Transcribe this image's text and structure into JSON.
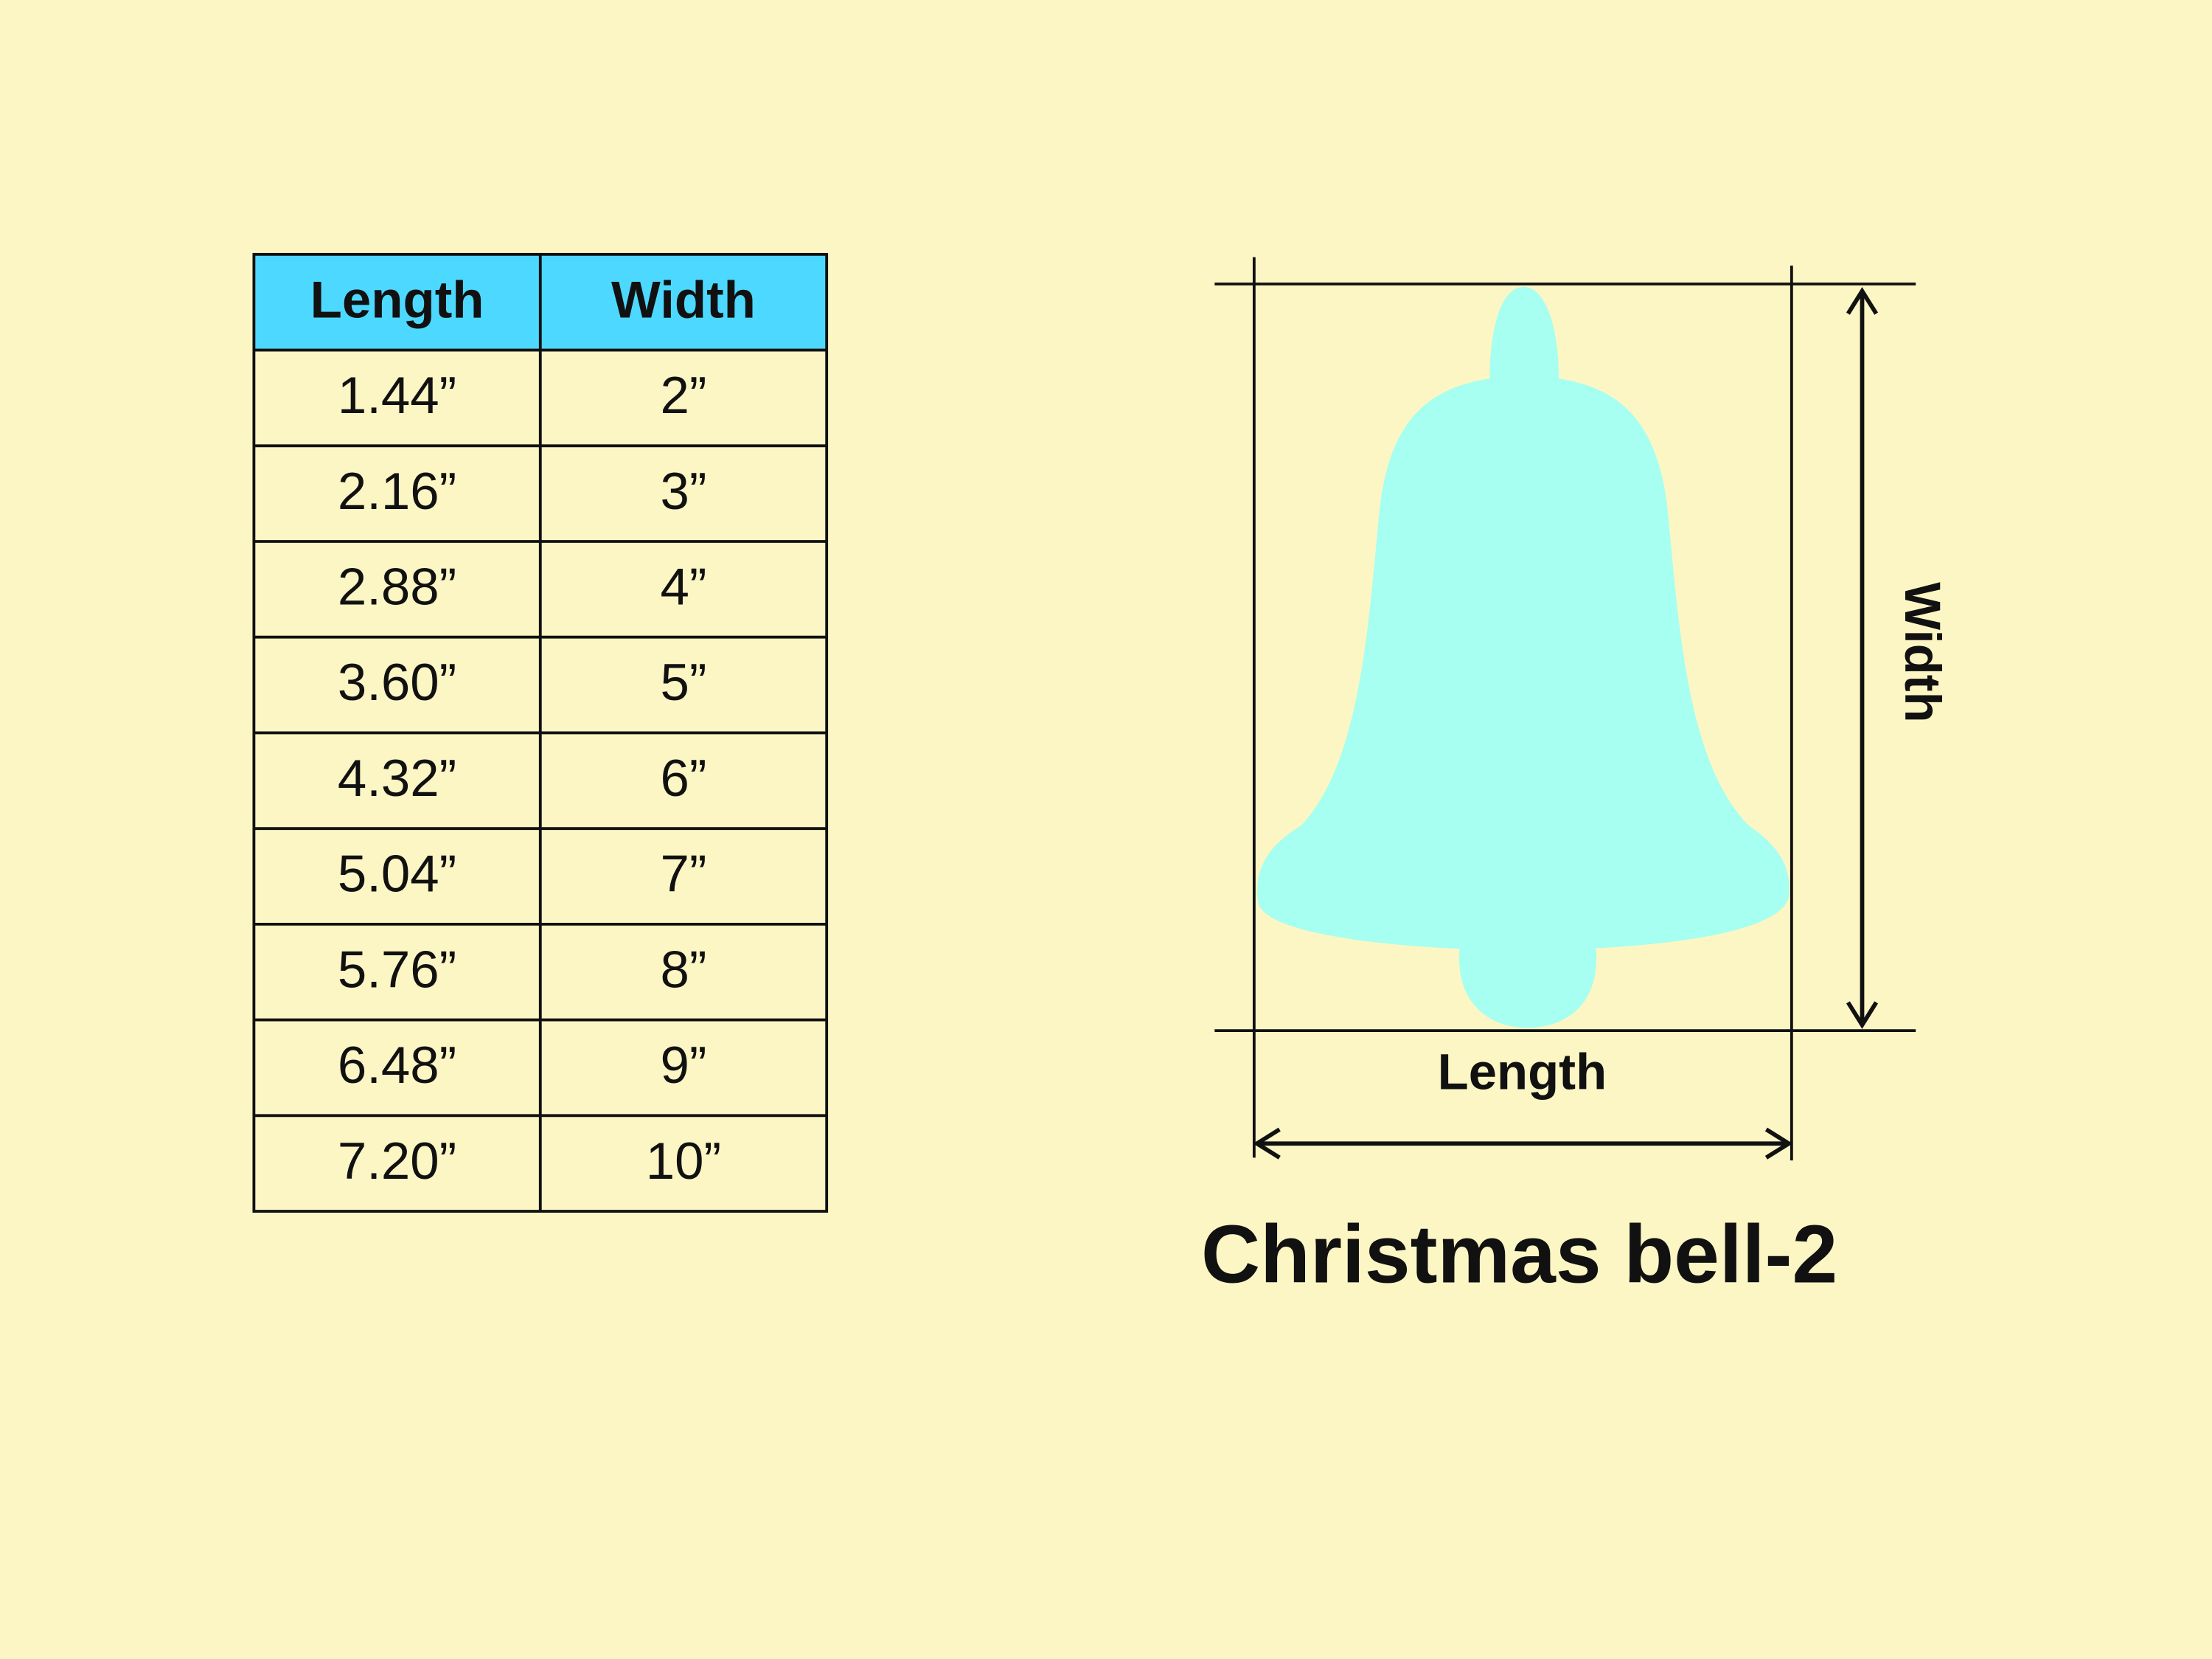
{
  "table": {
    "header": [
      "Length",
      "Width"
    ],
    "rows": [
      [
        "1.44”",
        "2”"
      ],
      [
        "2.16”",
        "3”"
      ],
      [
        "2.88”",
        "4”"
      ],
      [
        "3.60”",
        "5”"
      ],
      [
        "4.32”",
        "6”"
      ],
      [
        "5.04”",
        "7”"
      ],
      [
        "5.76”",
        "8”"
      ],
      [
        "6.48”",
        "9”"
      ],
      [
        "7.20”",
        "10”"
      ]
    ]
  },
  "diagram": {
    "width_label": "Width",
    "length_label": "Length",
    "title": "Christmas bell-2"
  }
}
